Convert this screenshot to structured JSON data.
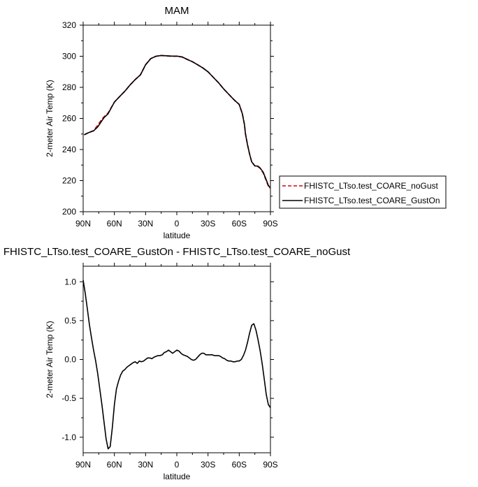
{
  "chart_data": [
    {
      "type": "line",
      "title": "MAM",
      "xlabel": "latitude",
      "ylabel": "2-meter Air Temp (K)",
      "xlim": [
        90,
        -90
      ],
      "ylim": [
        200,
        320
      ],
      "x_ticks": [
        90,
        60,
        30,
        0,
        -30,
        -60,
        -90
      ],
      "x_tick_labels": [
        "90N",
        "60N",
        "30N",
        "0",
        "30S",
        "60S",
        "90S"
      ],
      "y_ticks": [
        200,
        220,
        240,
        260,
        280,
        300,
        320
      ],
      "y_tick_labels": [
        "200",
        "220",
        "240",
        "260",
        "280",
        "300",
        "320"
      ],
      "legend_position": "right",
      "series": [
        {
          "name": "FHISTC_LTso.test_COARE_noGust",
          "color": "#dd0000",
          "dash": "dashed",
          "x": [
            89,
            85,
            80,
            76,
            72,
            70,
            66,
            60,
            55,
            50,
            45,
            40,
            35,
            30,
            25,
            20,
            15,
            10,
            5,
            0,
            -5,
            -10,
            -15,
            -20,
            -25,
            -30,
            -35,
            -40,
            -45,
            -50,
            -55,
            -60,
            -63,
            -65,
            -66,
            -68,
            -70,
            -72,
            -75,
            -78,
            -80,
            -83,
            -86,
            -88,
            -89.5
          ],
          "y": [
            249.5,
            250.8,
            252.2,
            255.5,
            259.5,
            261,
            263.5,
            270.5,
            274,
            277.5,
            281.5,
            285,
            288,
            294.5,
            298.5,
            300,
            300.5,
            300.2,
            300,
            300,
            299.5,
            298,
            296.5,
            294.5,
            292.5,
            290,
            286.5,
            283,
            279,
            275.5,
            272,
            269,
            263,
            256,
            250,
            243,
            237,
            232,
            229.5,
            229,
            228,
            225,
            220,
            216.5,
            215
          ]
        },
        {
          "name": "FHISTC_LTso.test_COARE_GustOn",
          "color": "#000000",
          "dash": "solid",
          "x": [
            89,
            85,
            80,
            76,
            72,
            70,
            66,
            60,
            55,
            50,
            45,
            40,
            35,
            30,
            25,
            20,
            15,
            10,
            5,
            0,
            -5,
            -10,
            -15,
            -20,
            -25,
            -30,
            -35,
            -40,
            -45,
            -50,
            -55,
            -60,
            -63,
            -65,
            -66,
            -68,
            -70,
            -72,
            -75,
            -78,
            -80,
            -83,
            -86,
            -88,
            -89.5
          ],
          "y": [
            249.5,
            250.8,
            252,
            254.5,
            258.5,
            260.5,
            263,
            270.5,
            274,
            277.5,
            281.5,
            285,
            288,
            294.5,
            298.5,
            300,
            300.5,
            300.3,
            300.1,
            300.1,
            299.6,
            298,
            296.5,
            294.5,
            292.5,
            290,
            286.5,
            283,
            279,
            275.5,
            272,
            269,
            263,
            256,
            250,
            243,
            237,
            232,
            229.5,
            229.3,
            228.2,
            225.5,
            220.5,
            217,
            215.5
          ]
        }
      ]
    },
    {
      "type": "line",
      "title": "FHISTC_LTso.test_COARE_GustOn - FHISTC_LTso.test_COARE_noGust",
      "xlabel": "latitude",
      "ylabel": "2-meter Air Temp (K)",
      "xlim": [
        90,
        -90
      ],
      "ylim": [
        -1.2,
        1.2
      ],
      "x_ticks": [
        90,
        60,
        30,
        0,
        -30,
        -60,
        -90
      ],
      "x_tick_labels": [
        "90N",
        "60N",
        "30N",
        "0",
        "30S",
        "60S",
        "90S"
      ],
      "y_ticks": [
        1.0,
        0.5,
        0.0,
        -0.5,
        -1.0
      ],
      "y_tick_labels": [
        "1.0",
        "0.5",
        "0.0",
        "-0.5",
        "-1.0"
      ],
      "series": [
        {
          "name": "",
          "color": "#000000",
          "dash": "solid",
          "x": [
            90,
            88,
            86,
            84,
            82,
            80,
            78,
            76,
            74,
            72,
            70,
            68,
            66,
            64,
            62,
            60,
            58,
            56,
            54,
            52,
            50,
            48,
            46,
            44,
            42,
            40,
            38,
            36,
            34,
            32,
            30,
            28,
            26,
            24,
            22,
            20,
            18,
            16,
            14,
            12,
            10,
            8,
            6,
            4,
            2,
            0,
            -2,
            -4,
            -6,
            -8,
            -10,
            -12,
            -14,
            -16,
            -18,
            -20,
            -22,
            -24,
            -26,
            -28,
            -30,
            -32,
            -34,
            -36,
            -38,
            -40,
            -42,
            -44,
            -46,
            -48,
            -50,
            -52,
            -54,
            -56,
            -58,
            -60,
            -62,
            -64,
            -66,
            -68,
            -70,
            -72,
            -74,
            -76,
            -78,
            -80,
            -82,
            -84,
            -86,
            -88,
            -90
          ],
          "y": [
            1.02,
            0.85,
            0.65,
            0.45,
            0.28,
            0.12,
            -0.02,
            -0.18,
            -0.38,
            -0.58,
            -0.8,
            -1.02,
            -1.15,
            -1.12,
            -0.88,
            -0.58,
            -0.38,
            -0.28,
            -0.2,
            -0.15,
            -0.13,
            -0.1,
            -0.08,
            -0.06,
            -0.04,
            -0.03,
            -0.05,
            -0.02,
            -0.03,
            -0.02,
            0.0,
            0.02,
            0.02,
            0.01,
            0.03,
            0.04,
            0.05,
            0.05,
            0.06,
            0.09,
            0.1,
            0.12,
            0.1,
            0.08,
            0.1,
            0.12,
            0.11,
            0.08,
            0.06,
            0.05,
            0.04,
            0.02,
            0.0,
            -0.01,
            0.0,
            0.03,
            0.06,
            0.08,
            0.08,
            0.06,
            0.06,
            0.06,
            0.06,
            0.05,
            0.05,
            0.05,
            0.04,
            0.02,
            0.01,
            -0.01,
            -0.02,
            -0.02,
            -0.03,
            -0.03,
            -0.02,
            -0.02,
            0.0,
            0.05,
            0.12,
            0.22,
            0.34,
            0.44,
            0.46,
            0.38,
            0.26,
            0.12,
            -0.05,
            -0.25,
            -0.45,
            -0.58,
            -0.62
          ]
        }
      ]
    }
  ]
}
